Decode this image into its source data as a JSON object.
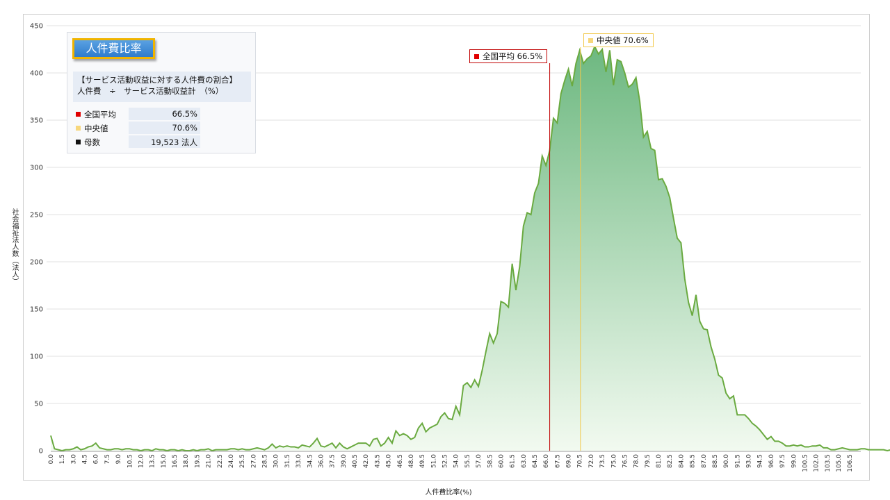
{
  "info_box": {
    "title": "人件費比率",
    "description_line1": "【サービス活動収益に対する人件費の割合】",
    "description_line2": "人件費　÷　サービス活動収益計　（%）",
    "stats": [
      {
        "label": "全国平均",
        "value": "66.5%",
        "color": "#e00000"
      },
      {
        "label": "中央値",
        "value": "70.6%",
        "color": "#f7d77c"
      },
      {
        "label": "母数",
        "value": "19,523 法人",
        "color": "#111111"
      }
    ]
  },
  "annotations": {
    "mean": {
      "label": "全国平均",
      "value": "66.5%",
      "text": "全国平均  66.5%",
      "x": 66.5,
      "color": "#c00000"
    },
    "median": {
      "label": "中央値",
      "value": "70.6%",
      "text": "中央値  70.6%",
      "x": 70.6,
      "color": "#f2c94c"
    }
  },
  "chart_data": {
    "type": "area",
    "xlabel": "人件費比率(%)",
    "ylabel": "社会福祉法人数（法人）",
    "ylim": [
      0,
      450
    ],
    "yticks": [
      0,
      50,
      100,
      150,
      200,
      250,
      300,
      350,
      400,
      450
    ],
    "xlim": [
      0,
      107.5
    ],
    "x_step": 0.5,
    "x_tick_labels": [
      "0.0",
      "1.5",
      "3.0",
      "4.5",
      "6.0",
      "7.5",
      "9.0",
      "10.5",
      "12.0",
      "13.5",
      "15.0",
      "16.5",
      "18.0",
      "19.5",
      "21.0",
      "22.5",
      "24.0",
      "25.5",
      "27.0",
      "28.5",
      "30.0",
      "31.5",
      "33.0",
      "34.5",
      "36.0",
      "37.5",
      "39.0",
      "40.5",
      "42.0",
      "43.5",
      "45.0",
      "46.5",
      "48.0",
      "49.5",
      "51.0",
      "52.5",
      "54.0",
      "55.5",
      "57.0",
      "58.5",
      "60.0",
      "61.5",
      "63.0",
      "64.5",
      "66.0",
      "67.5",
      "69.0",
      "70.5",
      "72.0",
      "73.5",
      "75.0",
      "76.5",
      "78.0",
      "79.5",
      "81.0",
      "82.5",
      "84.0",
      "85.5",
      "87.0",
      "88.5",
      "90.0",
      "91.5",
      "93.0",
      "94.5",
      "96.0",
      "97.5",
      "99.0",
      "100.5",
      "102.0",
      "103.5",
      "105.0",
      "106.5"
    ],
    "grid": true,
    "line_color": "#6aaa40",
    "fill_top_color": "#6db880",
    "fill_bottom_color": "#f2faf0",
    "series": [
      {
        "values": [
          16,
          2,
          1,
          0,
          1,
          1,
          2,
          4,
          1,
          2,
          4,
          5,
          8,
          3,
          2,
          1,
          1,
          2,
          2,
          1,
          2,
          2,
          1,
          1,
          0,
          1,
          1,
          0,
          2,
          1,
          1,
          0,
          1,
          1,
          0,
          1,
          0,
          0,
          1,
          0,
          1,
          1,
          2,
          0,
          1,
          1,
          1,
          1,
          2,
          2,
          1,
          2,
          1,
          1,
          2,
          3,
          2,
          1,
          3,
          7,
          3,
          5,
          4,
          5,
          4,
          4,
          3,
          6,
          5,
          4,
          8,
          13,
          5,
          4,
          6,
          8,
          3,
          8,
          4,
          2,
          4,
          6,
          8,
          8,
          8,
          5,
          12,
          13,
          5,
          8,
          14,
          8,
          21,
          16,
          18,
          16,
          12,
          14,
          24,
          29,
          20,
          24,
          26,
          28,
          36,
          40,
          34,
          33,
          47,
          38,
          69,
          72,
          67,
          75,
          68,
          85,
          105,
          124,
          114,
          124,
          158,
          156,
          152,
          198,
          170,
          195,
          238,
          252,
          250,
          273,
          283,
          312,
          302,
          318,
          352,
          347,
          378,
          392,
          404,
          386,
          410,
          424,
          410,
          415,
          418,
          428,
          420,
          425,
          401,
          424,
          387,
          414,
          412,
          400,
          385,
          388,
          395,
          370,
          332,
          338,
          320,
          318,
          287,
          288,
          280,
          268,
          246,
          225,
          220,
          182,
          157,
          143,
          165,
          137,
          129,
          128,
          110,
          97,
          80,
          77,
          61,
          55,
          58,
          38,
          38,
          38,
          34,
          29,
          26,
          22,
          17,
          12,
          15,
          10,
          10,
          8,
          5,
          5,
          6,
          5,
          6,
          4,
          4,
          5,
          5,
          6,
          3,
          3,
          1,
          1,
          2,
          3,
          2,
          1,
          1,
          1,
          2,
          2,
          1,
          1,
          1,
          1,
          1,
          0,
          1
        ]
      }
    ]
  }
}
